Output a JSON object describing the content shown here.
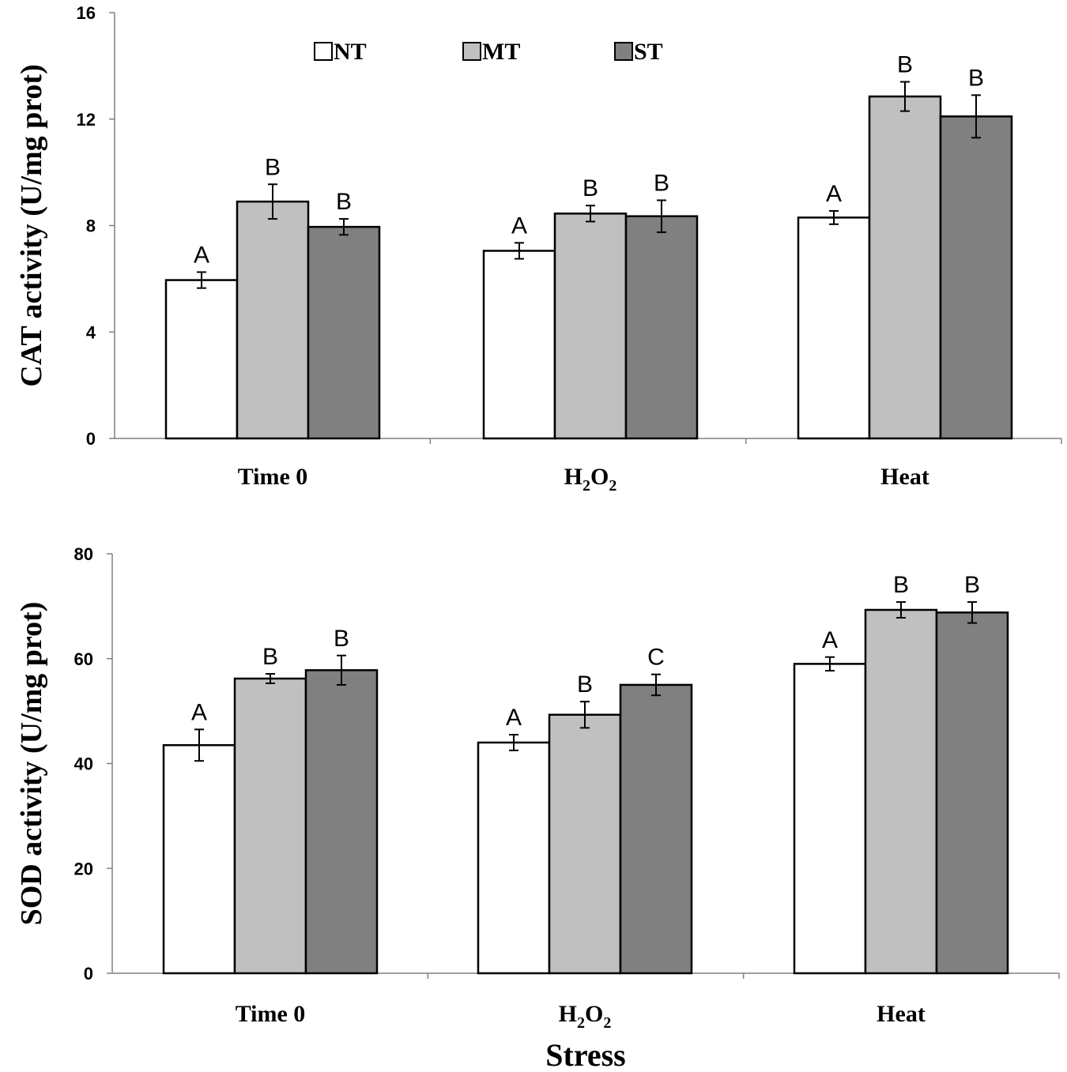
{
  "chart_data": [
    {
      "type": "bar",
      "ylabel": "CAT activity (U/mg prot)",
      "xlabel": "",
      "ylim": [
        0,
        16
      ],
      "yticks": [
        "0",
        "4",
        "8",
        "12",
        "16"
      ],
      "categories": [
        "Time 0",
        "H2O2",
        "Heat"
      ],
      "series": [
        {
          "name": "NT",
          "color": "#ffffff",
          "values": [
            5.95,
            7.05,
            8.3
          ],
          "errors": [
            0.3,
            0.3,
            0.25
          ],
          "labels": [
            "A",
            "A",
            "A"
          ]
        },
        {
          "name": "MT",
          "color": "#c0c0c0",
          "values": [
            8.9,
            8.45,
            12.85
          ],
          "errors": [
            0.65,
            0.3,
            0.55
          ],
          "labels": [
            "B",
            "B",
            "B"
          ]
        },
        {
          "name": "ST",
          "color": "#808080",
          "values": [
            7.95,
            8.35,
            12.1
          ],
          "errors": [
            0.3,
            0.6,
            0.8
          ],
          "labels": [
            "B",
            "B",
            "B"
          ]
        }
      ]
    },
    {
      "type": "bar",
      "ylabel": "SOD activity (U/mg prot)",
      "xlabel": "Stress",
      "ylim": [
        0,
        80
      ],
      "yticks": [
        "0",
        "20",
        "40",
        "60",
        "80"
      ],
      "categories": [
        "Time 0",
        "H2O2",
        "Heat"
      ],
      "series": [
        {
          "name": "NT",
          "color": "#ffffff",
          "values": [
            43.5,
            44.0,
            59.0
          ],
          "errors": [
            3.0,
            1.5,
            1.3
          ],
          "labels": [
            "A",
            "A",
            "A"
          ]
        },
        {
          "name": "MT",
          "color": "#c0c0c0",
          "values": [
            56.2,
            49.3,
            69.3
          ],
          "errors": [
            0.9,
            2.5,
            1.5
          ],
          "labels": [
            "B",
            "B",
            "B"
          ]
        },
        {
          "name": "ST",
          "color": "#808080",
          "values": [
            57.8,
            55.0,
            68.8
          ],
          "errors": [
            2.8,
            2.0,
            2.0
          ],
          "labels": [
            "B",
            "C",
            "B"
          ]
        }
      ]
    }
  ],
  "legend": [
    {
      "name": "NT",
      "color": "#ffffff"
    },
    {
      "name": "MT",
      "color": "#c0c0c0"
    },
    {
      "name": "ST",
      "color": "#808080"
    }
  ]
}
